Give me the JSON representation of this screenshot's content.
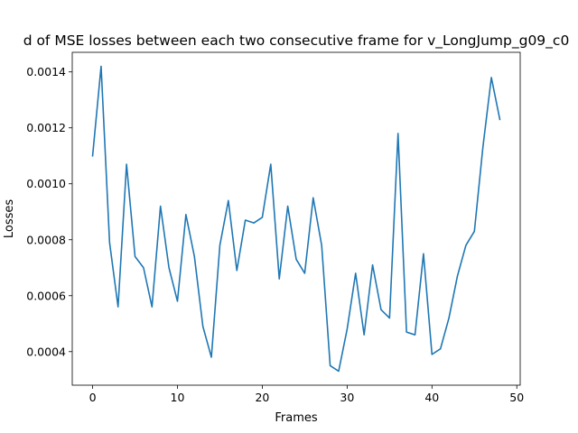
{
  "chart_data": {
    "type": "line",
    "title": "d of MSE losses between each two consecutive frame for v_LongJump_g09_c0",
    "xlabel": "Frames",
    "ylabel": "Losses",
    "xlim": [
      -2.4,
      50.4
    ],
    "ylim": [
      0.00028,
      0.00147
    ],
    "x_ticks": [
      0,
      10,
      20,
      30,
      40,
      50
    ],
    "y_ticks": [
      0.0004,
      0.0006,
      0.0008,
      0.001,
      0.0012,
      0.0014
    ],
    "x_tick_labels": [
      "0",
      "10",
      "20",
      "30",
      "40",
      "50"
    ],
    "y_tick_labels": [
      "0.0004",
      "0.0006",
      "0.0008",
      "0.0010",
      "0.0012",
      "0.0014"
    ],
    "grid": false,
    "line_color": "#1f77b4",
    "series": [
      {
        "x": [
          0,
          1,
          2,
          3,
          4,
          5,
          6,
          7,
          8,
          9,
          10,
          11,
          12,
          13,
          14,
          15,
          16,
          17,
          18,
          19,
          20,
          21,
          22,
          23,
          24,
          25,
          26,
          27,
          28,
          29,
          30,
          31,
          32,
          33,
          34,
          35,
          36,
          37,
          38,
          39,
          40,
          41,
          42,
          43,
          44,
          45,
          46,
          47,
          48
        ],
        "values": [
          0.0011,
          0.00142,
          0.00079,
          0.00056,
          0.00107,
          0.00074,
          0.0007,
          0.00056,
          0.00092,
          0.0007,
          0.00058,
          0.00089,
          0.00074,
          0.00049,
          0.00038,
          0.00078,
          0.00094,
          0.00069,
          0.00087,
          0.00086,
          0.00088,
          0.00107,
          0.00066,
          0.00092,
          0.00073,
          0.00068,
          0.00095,
          0.00078,
          0.00035,
          0.00033,
          0.00048,
          0.00068,
          0.00046,
          0.00071,
          0.00055,
          0.00052,
          0.00118,
          0.00047,
          0.00046,
          0.00075,
          0.00039,
          0.00041,
          0.00052,
          0.00067,
          0.00078,
          0.00083,
          0.00113,
          0.00138,
          0.00123
        ]
      }
    ]
  }
}
